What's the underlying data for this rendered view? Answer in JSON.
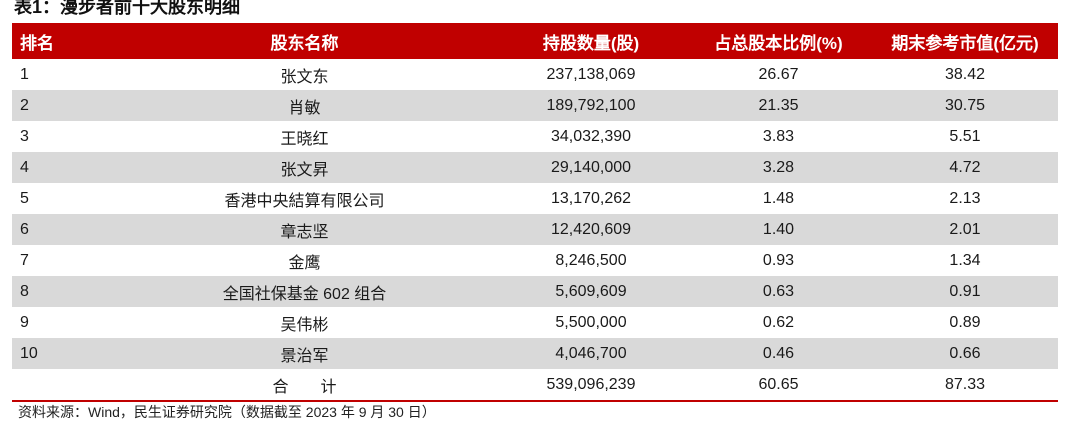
{
  "title": "表1：漫步者前十大股东明细",
  "header": {
    "rank": "排名",
    "name": "股东名称",
    "shares": "持股数量(股)",
    "ratio": "占总股本比例(%)",
    "value": "期末参考市值(亿元)"
  },
  "rows": [
    {
      "rank": "1",
      "name": "张文东",
      "shares": "237,138,069",
      "ratio": "26.67",
      "value": "38.42"
    },
    {
      "rank": "2",
      "name": "肖敏",
      "shares": "189,792,100",
      "ratio": "21.35",
      "value": "30.75"
    },
    {
      "rank": "3",
      "name": "王晓红",
      "shares": "34,032,390",
      "ratio": "3.83",
      "value": "5.51"
    },
    {
      "rank": "4",
      "name": "张文昇",
      "shares": "29,140,000",
      "ratio": "3.28",
      "value": "4.72"
    },
    {
      "rank": "5",
      "name": "香港中央結算有限公司",
      "shares": "13,170,262",
      "ratio": "1.48",
      "value": "2.13"
    },
    {
      "rank": "6",
      "name": "章志坚",
      "shares": "12,420,609",
      "ratio": "1.40",
      "value": "2.01"
    },
    {
      "rank": "7",
      "name": "金鹰",
      "shares": "8,246,500",
      "ratio": "0.93",
      "value": "1.34"
    },
    {
      "rank": "8",
      "name": "全国社保基金 602 组合",
      "shares": "5,609,609",
      "ratio": "0.63",
      "value": "0.91"
    },
    {
      "rank": "9",
      "name": "吴伟彬",
      "shares": "5,500,000",
      "ratio": "0.62",
      "value": "0.89"
    },
    {
      "rank": "10",
      "name": "景治军",
      "shares": "4,046,700",
      "ratio": "0.46",
      "value": "0.66"
    }
  ],
  "total": {
    "label": "合　　计",
    "shares": "539,096,239",
    "ratio": "60.65",
    "value": "87.33"
  },
  "source": "资料来源：Wind，民生证券研究院（数据截至 2023 年 9 月 30 日）",
  "colors": {
    "header_bg": "#c00000",
    "stripe_bg": "#d9d9d9"
  }
}
